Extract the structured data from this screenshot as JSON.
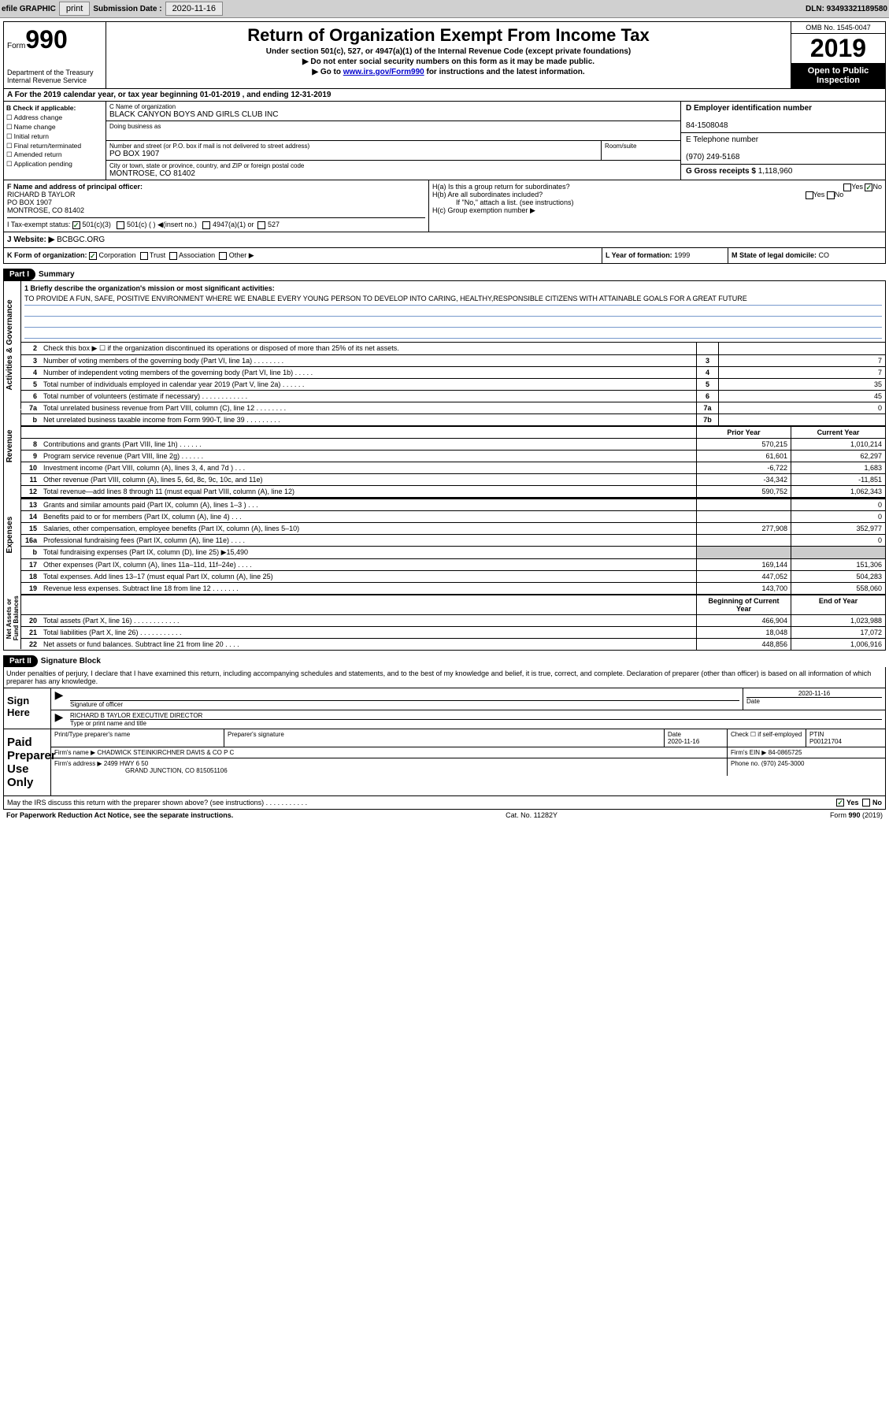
{
  "toolbar": {
    "efile": "efile GRAPHIC",
    "print": "print",
    "sub_label": "Submission Date : ",
    "sub_date": "2020-11-16",
    "dln": "DLN: 93493321189580"
  },
  "header": {
    "form_word": "Form",
    "form_num": "990",
    "dept": "Department of the Treasury\nInternal Revenue Service",
    "title": "Return of Organization Exempt From Income Tax",
    "sub1": "Under section 501(c), 527, or 4947(a)(1) of the Internal Revenue Code (except private foundations)",
    "sub2": "▶ Do not enter social security numbers on this form as it may be made public.",
    "sub3_pre": "▶ Go to ",
    "sub3_link": "www.irs.gov/Form990",
    "sub3_post": " for instructions and the latest information.",
    "omb": "OMB No. 1545-0047",
    "year": "2019",
    "open": "Open to Public Inspection"
  },
  "period": "A For the 2019 calendar year, or tax year beginning 01-01-2019    , and ending 12-31-2019",
  "box_b": {
    "hdr": "B Check if applicable:",
    "opts": [
      "Address change",
      "Name change",
      "Initial return",
      "Final return/terminated",
      "Amended return",
      "Application pending"
    ]
  },
  "box_c": {
    "name_label": "C Name of organization",
    "name": "BLACK CANYON BOYS AND GIRLS CLUB INC",
    "dba_label": "Doing business as",
    "addr_label": "Number and street (or P.O. box if mail is not delivered to street address)",
    "room_label": "Room/suite",
    "addr": "PO BOX 1907",
    "city_label": "City or town, state or province, country, and ZIP or foreign postal code",
    "city": "MONTROSE, CO  81402"
  },
  "box_d": {
    "label": "D Employer identification number",
    "val": "84-1508048"
  },
  "box_e": {
    "label": "E Telephone number",
    "val": "(970) 249-5168"
  },
  "box_g": {
    "label": "G Gross receipts $ ",
    "val": "1,118,960"
  },
  "box_f": {
    "label": "F  Name and address of principal officer:",
    "name": "RICHARD B TAYLOR",
    "addr1": "PO BOX 1907",
    "addr2": "MONTROSE, CO  81402"
  },
  "box_h": {
    "ha": "H(a)  Is this a group return for subordinates?",
    "ha_yes": "Yes",
    "ha_no": "No",
    "hb": "H(b)  Are all subordinates included?",
    "hb_yes": "Yes",
    "hb_no": "No",
    "hb_note": "If \"No,\" attach a list. (see instructions)",
    "hc": "H(c)  Group exemption number ▶"
  },
  "tax_status": {
    "i": "I  Tax-exempt status:",
    "o1": "501(c)(3)",
    "o2": "501(c) (  ) ◀(insert no.)",
    "o3": "4947(a)(1) or",
    "o4": "527"
  },
  "website": {
    "label": "J  Website: ▶ ",
    "val": "BCBGC.ORG"
  },
  "box_k": {
    "label": "K Form of organization:",
    "o1": "Corporation",
    "o2": "Trust",
    "o3": "Association",
    "o4": "Other ▶"
  },
  "box_l": {
    "label": "L Year of formation: ",
    "val": "1999"
  },
  "box_m": {
    "label": "M State of legal domicile: ",
    "val": "CO"
  },
  "part1": {
    "num": "Part I",
    "title": "Summary"
  },
  "mission": {
    "label": "1  Briefly describe the organization's mission or most significant activities:",
    "text": "TO PROVIDE A FUN, SAFE, POSITIVE ENVIRONMENT WHERE WE ENABLE EVERY YOUNG PERSON TO DEVELOP INTO CARING, HEALTHY,RESPONSIBLE CITIZENS WITH ATTAINABLE GOALS FOR A GREAT FUTURE"
  },
  "vtabs": {
    "ag": "Activities & Governance",
    "rev": "Revenue",
    "exp": "Expenses",
    "na": "Net Assets or Fund Balances"
  },
  "lines_ag": [
    {
      "n": "2",
      "d": "Check this box ▶ ☐  if the organization discontinued its operations or disposed of more than 25% of its net assets.",
      "box": "",
      "py": "",
      "cy": ""
    },
    {
      "n": "3",
      "d": "Number of voting members of the governing body (Part VI, line 1a)   .    .    .    .    .    .    .    .",
      "box": "3",
      "cy": "7"
    },
    {
      "n": "4",
      "d": "Number of independent voting members of the governing body (Part VI, line 1b)   .    .    .    .    .",
      "box": "4",
      "cy": "7"
    },
    {
      "n": "5",
      "d": "Total number of individuals employed in calendar year 2019 (Part V, line 2a)   .    .    .    .    .    .",
      "box": "5",
      "cy": "35"
    },
    {
      "n": "6",
      "d": "Total number of volunteers (estimate if necessary)    .    .    .    .    .    .    .    .    .    .    .    .",
      "box": "6",
      "cy": "45"
    },
    {
      "n": "7a",
      "d": "Total unrelated business revenue from Part VIII, column (C), line 12   .    .    .    .    .    .    .    .",
      "box": "7a",
      "cy": "0"
    },
    {
      "n": "b",
      "d": "Net unrelated business taxable income from Form 990-T, line 39   .    .    .    .    .    .    .    .    .",
      "box": "7b",
      "cy": ""
    }
  ],
  "col_hdrs": {
    "py": "Prior Year",
    "cy": "Current Year",
    "boy": "Beginning of Current Year",
    "eoy": "End of Year"
  },
  "lines_rev": [
    {
      "n": "8",
      "d": "Contributions and grants (Part VIII, line 1h)    .    .    .    .    .    .",
      "py": "570,215",
      "cy": "1,010,214"
    },
    {
      "n": "9",
      "d": "Program service revenue (Part VIII, line 2g)    .    .    .    .    .    .",
      "py": "61,601",
      "cy": "62,297"
    },
    {
      "n": "10",
      "d": "Investment income (Part VIII, column (A), lines 3, 4, and 7d )    .    .    .",
      "py": "-6,722",
      "cy": "1,683"
    },
    {
      "n": "11",
      "d": "Other revenue (Part VIII, column (A), lines 5, 6d, 8c, 9c, 10c, and 11e)",
      "py": "-34,342",
      "cy": "-11,851"
    },
    {
      "n": "12",
      "d": "Total revenue—add lines 8 through 11 (must equal Part VIII, column (A), line 12)",
      "py": "590,752",
      "cy": "1,062,343"
    }
  ],
  "lines_exp": [
    {
      "n": "13",
      "d": "Grants and similar amounts paid (Part IX, column (A), lines 1–3 )    .    .    .",
      "py": "",
      "cy": "0"
    },
    {
      "n": "14",
      "d": "Benefits paid to or for members (Part IX, column (A), line 4)    .    .    .",
      "py": "",
      "cy": "0"
    },
    {
      "n": "15",
      "d": "Salaries, other compensation, employee benefits (Part IX, column (A), lines 5–10)",
      "py": "277,908",
      "cy": "352,977"
    },
    {
      "n": "16a",
      "d": "Professional fundraising fees (Part IX, column (A), line 11e)    .    .    .    .",
      "py": "",
      "cy": "0"
    },
    {
      "n": "b",
      "d": "Total fundraising expenses (Part IX, column (D), line 25) ▶15,490",
      "py": "SHADE",
      "cy": "SHADE"
    },
    {
      "n": "17",
      "d": "Other expenses (Part IX, column (A), lines 11a–11d, 11f–24e)    .    .    .    .",
      "py": "169,144",
      "cy": "151,306"
    },
    {
      "n": "18",
      "d": "Total expenses. Add lines 13–17 (must equal Part IX, column (A), line 25)",
      "py": "447,052",
      "cy": "504,283"
    },
    {
      "n": "19",
      "d": "Revenue less expenses. Subtract line 18 from line 12   .    .    .    .    .    .    .",
      "py": "143,700",
      "cy": "558,060"
    }
  ],
  "lines_na": [
    {
      "n": "20",
      "d": "Total assets (Part X, line 16)   .    .    .    .    .    .    .    .    .    .    .    .",
      "py": "466,904",
      "cy": "1,023,988"
    },
    {
      "n": "21",
      "d": "Total liabilities (Part X, line 26)   .    .    .    .    .    .    .    .    .    .    .",
      "py": "18,048",
      "cy": "17,072"
    },
    {
      "n": "22",
      "d": "Net assets or fund balances. Subtract line 21 from line 20    .    .    .    .",
      "py": "448,856",
      "cy": "1,006,916"
    }
  ],
  "part2": {
    "num": "Part II",
    "title": "Signature Block"
  },
  "sig": {
    "decl": "Under penalties of perjury, I declare that I have examined this return, including accompanying schedules and statements, and to the best of my knowledge and belief, it is true, correct, and complete. Declaration of preparer (other than officer) is based on all information of which preparer has any knowledge.",
    "sign_here": "Sign Here",
    "sig_officer": "Signature of officer",
    "date": "Date",
    "date_val": "2020-11-16",
    "name": "RICHARD B TAYLOR  EXECUTIVE DIRECTOR",
    "name_label": "Type or print name and title",
    "paid": "Paid Preparer Use Only",
    "p_name": "Print/Type preparer's name",
    "p_sig": "Preparer's signature",
    "p_date": "Date",
    "p_date_val": "2020-11-16",
    "p_check": "Check ☐ if self-employed",
    "ptin": "PTIN",
    "ptin_val": "P00121704",
    "firm_name": "Firm's name     ▶ ",
    "firm_name_val": "CHADWICK STEINKIRCHNER DAVIS & CO P C",
    "firm_ein": "Firm's EIN ▶ ",
    "firm_ein_val": "84-0865725",
    "firm_addr": "Firm's address ▶ ",
    "firm_addr_val": "2499 HWY 6 50",
    "firm_city": "GRAND JUNCTION, CO  815051106",
    "phone": "Phone no. ",
    "phone_val": "(970) 245-3000",
    "discuss": "May the IRS discuss this return with the preparer shown above? (see instructions)    .    .    .    .    .    .    .    .    .    .    .",
    "yes": "Yes",
    "no": "No"
  },
  "footer": {
    "pra": "For Paperwork Reduction Act Notice, see the separate instructions.",
    "cat": "Cat. No. 11282Y",
    "form": "Form 990 (2019)"
  }
}
